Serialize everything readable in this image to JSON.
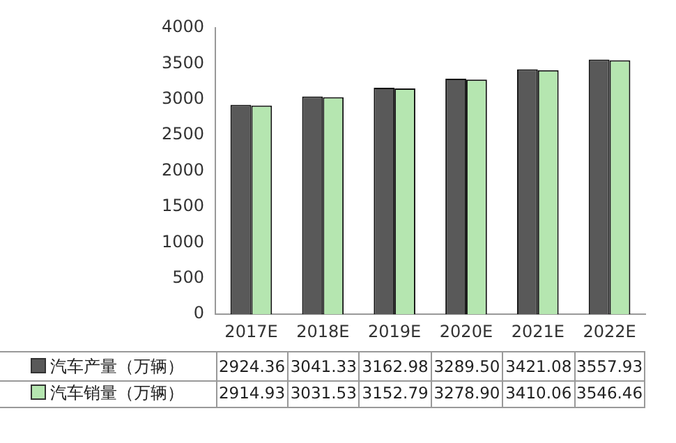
{
  "chart_data": {
    "type": "bar",
    "categories": [
      "2017E",
      "2018E",
      "2019E",
      "2020E",
      "2021E",
      "2022E"
    ],
    "series": [
      {
        "name": "汽车产量（万辆）",
        "color": "#595959",
        "values": [
          2924.36,
          3041.33,
          3162.98,
          3289.5,
          3421.08,
          3557.93
        ],
        "value_labels": [
          "2924.36",
          "3041.33",
          "3162.98",
          "3289.50",
          "3421.08",
          "3557.93"
        ]
      },
      {
        "name": "汽车销量（万辆）",
        "color": "#b5e6b0",
        "values": [
          2914.93,
          3031.53,
          3152.79,
          3278.9,
          3410.06,
          3546.46
        ],
        "value_labels": [
          "2914.93",
          "3031.53",
          "3152.79",
          "3278.90",
          "3410.06",
          "3546.46"
        ]
      }
    ],
    "ylim": [
      0,
      4000
    ],
    "yticks": [
      0,
      500,
      1000,
      1500,
      2000,
      2500,
      3000,
      3500,
      4000
    ],
    "grid": false,
    "legend": "bottom"
  }
}
